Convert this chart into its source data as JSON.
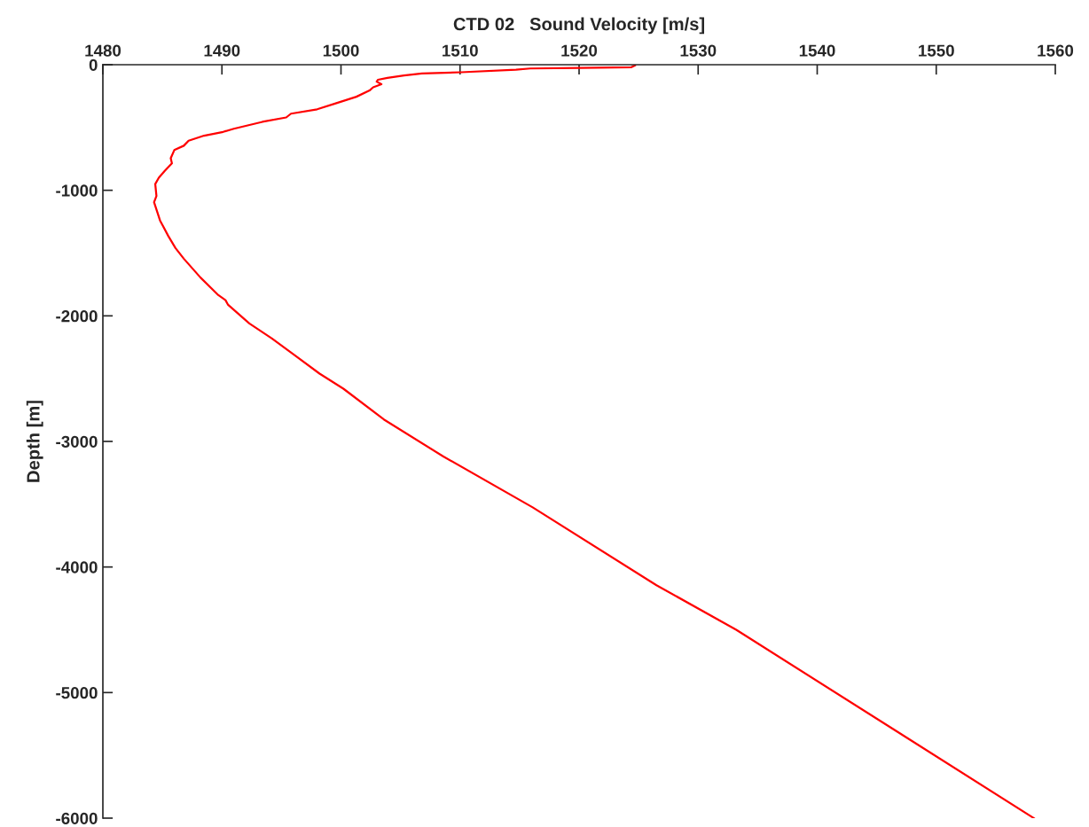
{
  "chart_data": {
    "type": "line",
    "title": "CTD 02   Sound Velocity [m/s]",
    "ylabel": "Depth [m]",
    "xlim": [
      1480,
      1560
    ],
    "xticks": [
      1480,
      1490,
      1500,
      1510,
      1520,
      1530,
      1540,
      1550,
      1560
    ],
    "ylim": [
      -6000,
      0
    ],
    "yticks": [
      -6000,
      -5000,
      -4000,
      -3000,
      -2000,
      -1000,
      0
    ],
    "grid": false,
    "marker": "none",
    "line_style": "solid",
    "series": [
      {
        "color": "#ff0000",
        "x": [
          1524.7,
          1524.4,
          1520.1,
          1515.9,
          1514.7,
          1510.1,
          1506.8,
          1505.3,
          1503.9,
          1503.1,
          1503.0,
          1503.4,
          1502.7,
          1502.4,
          1501.3,
          1499.5,
          1498.0,
          1495.8,
          1495.4,
          1493.4,
          1491.0,
          1490.1,
          1488.5,
          1487.2,
          1486.8,
          1486.0,
          1485.7,
          1485.8,
          1485.2,
          1484.7,
          1484.4,
          1484.5,
          1484.3,
          1484.8,
          1485.5,
          1486.1,
          1486.8,
          1488.2,
          1489.7,
          1490.3,
          1490.5,
          1492.3,
          1494.2,
          1496.2,
          1498.2,
          1500.2,
          1503.6,
          1508.6,
          1516.1,
          1526.5,
          1533.2,
          1558.2
        ],
        "values": [
          -5,
          -20,
          -25,
          -30,
          -40,
          -60,
          -70,
          -85,
          -105,
          -120,
          -135,
          -155,
          -180,
          -205,
          -255,
          -310,
          -355,
          -390,
          -420,
          -455,
          -510,
          -535,
          -565,
          -605,
          -645,
          -680,
          -745,
          -785,
          -845,
          -900,
          -950,
          -1045,
          -1095,
          -1240,
          -1365,
          -1460,
          -1545,
          -1695,
          -1835,
          -1875,
          -1910,
          -2060,
          -2180,
          -2320,
          -2460,
          -2580,
          -2825,
          -3120,
          -3525,
          -4145,
          -4500,
          -6000
        ]
      }
    ]
  }
}
